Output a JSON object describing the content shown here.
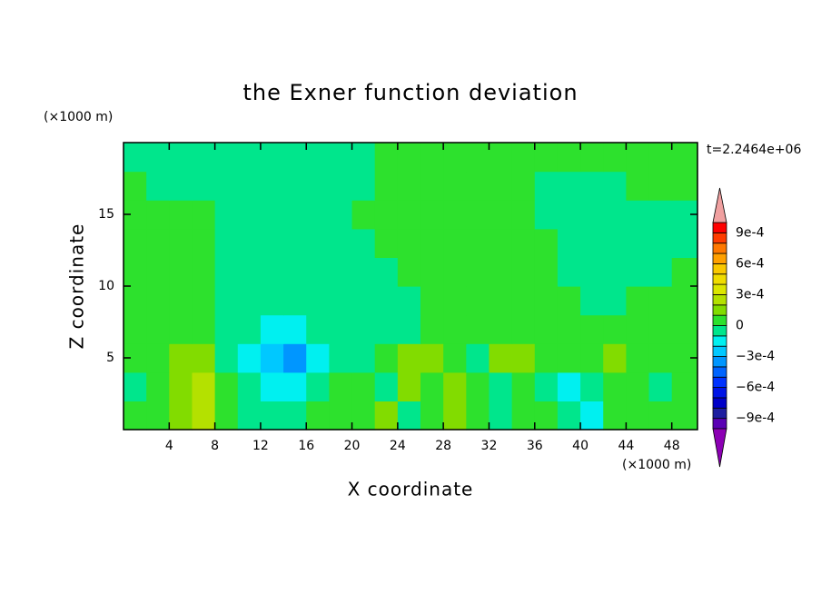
{
  "chart_data": {
    "type": "contour",
    "title": "the Exner function deviation",
    "x_label": "X coordinate",
    "y_label": "Z coordinate",
    "x_unit": "(×1000 m)",
    "y_unit": "(×1000 m)",
    "annotation": "t=2.2464e+06",
    "xlim": [
      0,
      50.25
    ],
    "ylim": [
      0,
      20
    ],
    "xticks": [
      4,
      8,
      12,
      16,
      20,
      24,
      28,
      32,
      36,
      40,
      44,
      48
    ],
    "yticks": [
      5,
      10,
      15
    ],
    "x": [
      1,
      3,
      5,
      7,
      9,
      11,
      13,
      15,
      17,
      19,
      21,
      23,
      25,
      27,
      29,
      31,
      33,
      35,
      37,
      39,
      41,
      43,
      45,
      47,
      49
    ],
    "y": [
      1,
      3,
      5,
      7,
      9,
      11,
      13,
      15,
      17,
      19
    ],
    "z": [
      [
        5e-05,
        5e-05,
        0.00015,
        0.00025,
        5e-05,
        -5e-05,
        -5e-05,
        -5e-05,
        5e-05,
        5e-05,
        5e-05,
        0.00015,
        -5e-05,
        5e-05,
        0.00015,
        5e-05,
        -5e-05,
        5e-05,
        5e-05,
        -5e-05,
        -0.00015,
        5e-05,
        5e-05,
        5e-05,
        5e-05
      ],
      [
        -5e-05,
        5e-05,
        0.00015,
        0.00025,
        5e-05,
        -5e-05,
        -0.00015,
        -0.00015,
        -5e-05,
        5e-05,
        5e-05,
        -5e-05,
        0.00015,
        5e-05,
        0.00015,
        5e-05,
        -5e-05,
        5e-05,
        -5e-05,
        -0.00015,
        -5e-05,
        5e-05,
        5e-05,
        -5e-05,
        5e-05
      ],
      [
        5e-05,
        5e-05,
        0.00015,
        0.00015,
        -5e-05,
        -0.00015,
        -0.00025,
        -0.00035,
        -0.00015,
        -5e-05,
        -5e-05,
        5e-05,
        0.00015,
        0.00015,
        5e-05,
        -5e-05,
        0.00015,
        0.00015,
        5e-05,
        5e-05,
        5e-05,
        0.00015,
        5e-05,
        5e-05,
        5e-05
      ],
      [
        5e-05,
        5e-05,
        5e-05,
        5e-05,
        -5e-05,
        -5e-05,
        -0.00015,
        -0.00015,
        -5e-05,
        -5e-05,
        -5e-05,
        -5e-05,
        -5e-05,
        5e-05,
        5e-05,
        5e-05,
        5e-05,
        5e-05,
        5e-05,
        5e-05,
        5e-05,
        5e-05,
        5e-05,
        5e-05,
        5e-05
      ],
      [
        5e-05,
        5e-05,
        5e-05,
        5e-05,
        -5e-05,
        -5e-05,
        -5e-05,
        -5e-05,
        -5e-05,
        -5e-05,
        -5e-05,
        -5e-05,
        -5e-05,
        5e-05,
        5e-05,
        5e-05,
        5e-05,
        5e-05,
        5e-05,
        5e-05,
        -5e-05,
        -5e-05,
        5e-05,
        5e-05,
        5e-05
      ],
      [
        5e-05,
        5e-05,
        5e-05,
        5e-05,
        -5e-05,
        -5e-05,
        -5e-05,
        -5e-05,
        -5e-05,
        -5e-05,
        -5e-05,
        -5e-05,
        5e-05,
        5e-05,
        5e-05,
        5e-05,
        5e-05,
        5e-05,
        5e-05,
        -5e-05,
        -5e-05,
        -5e-05,
        -5e-05,
        -5e-05,
        5e-05
      ],
      [
        5e-05,
        5e-05,
        5e-05,
        5e-05,
        -5e-05,
        -5e-05,
        -5e-05,
        -5e-05,
        -5e-05,
        -5e-05,
        -5e-05,
        5e-05,
        5e-05,
        5e-05,
        5e-05,
        5e-05,
        5e-05,
        5e-05,
        5e-05,
        -5e-05,
        -5e-05,
        -5e-05,
        -5e-05,
        -5e-05,
        -5e-05
      ],
      [
        5e-05,
        5e-05,
        5e-05,
        5e-05,
        -5e-05,
        -5e-05,
        -5e-05,
        -5e-05,
        -5e-05,
        -5e-05,
        5e-05,
        5e-05,
        5e-05,
        5e-05,
        5e-05,
        5e-05,
        5e-05,
        5e-05,
        -5e-05,
        -5e-05,
        -5e-05,
        -5e-05,
        -5e-05,
        -5e-05,
        -5e-05
      ],
      [
        5e-05,
        -5e-05,
        -5e-05,
        -5e-05,
        -5e-05,
        -5e-05,
        -5e-05,
        -5e-05,
        -5e-05,
        -5e-05,
        -5e-05,
        5e-05,
        5e-05,
        5e-05,
        5e-05,
        5e-05,
        5e-05,
        5e-05,
        -5e-05,
        -5e-05,
        -5e-05,
        -5e-05,
        5e-05,
        5e-05,
        5e-05
      ],
      [
        -5e-05,
        -5e-05,
        -5e-05,
        -5e-05,
        -5e-05,
        -5e-05,
        -5e-05,
        -5e-05,
        -5e-05,
        -5e-05,
        -5e-05,
        5e-05,
        5e-05,
        5e-05,
        5e-05,
        5e-05,
        5e-05,
        5e-05,
        5e-05,
        5e-05,
        5e-05,
        5e-05,
        5e-05,
        5e-05,
        5e-05
      ]
    ],
    "levels": [
      -0.001,
      -0.0009,
      -0.0008,
      -0.0007,
      -0.0006,
      -0.0005,
      -0.0004,
      -0.0003,
      -0.0002,
      -0.0001,
      0,
      0.0001,
      0.0002,
      0.0003,
      0.0004,
      0.0005,
      0.0006,
      0.0007,
      0.0008,
      0.0009,
      0.001
    ],
    "colors": [
      "#8c00b4",
      "#5a00b4",
      "#1e1ea0",
      "#0000c8",
      "#0014e6",
      "#0032ff",
      "#0064ff",
      "#0096ff",
      "#00c8ff",
      "#00f0f0",
      "#00e68c",
      "#2de12d",
      "#82dc00",
      "#b4e100",
      "#dce600",
      "#f0dc00",
      "#fac800",
      "#ffa000",
      "#ff7800",
      "#ff3c00",
      "#ff0000",
      "#f0a0a0"
    ],
    "colorbar_ticks": [
      {
        "value": 0.0009,
        "label": "9e-4"
      },
      {
        "value": 0.0006,
        "label": "6e-4"
      },
      {
        "value": 0.0003,
        "label": "3e-4"
      },
      0,
      {
        "value": -0.0003,
        "label": "−3e-4"
      },
      {
        "value": -0.0006,
        "label": "−6e-4"
      },
      {
        "value": -0.0009,
        "label": "−9e-4"
      }
    ]
  }
}
